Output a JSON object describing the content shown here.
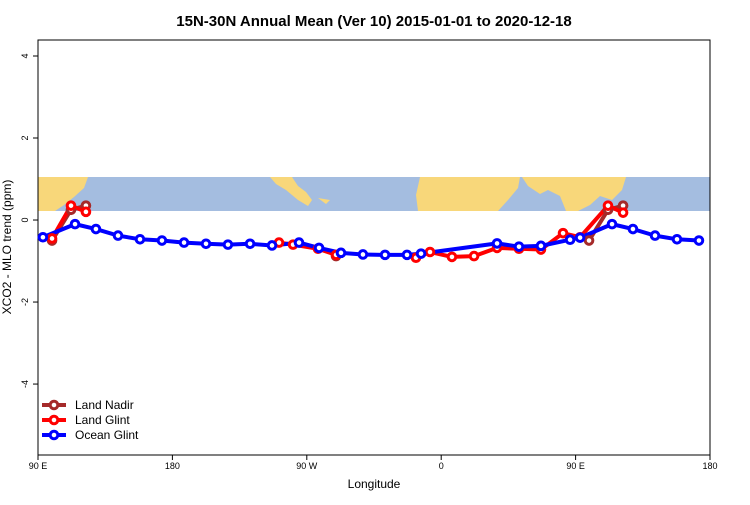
{
  "chart_data": {
    "type": "line",
    "title": "15N-30N Annual Mean (Ver 10)   2015-01-01 to 2020-12-18",
    "x_label": "Longitude",
    "y_label": "XCO2 - MLO trend (ppm)",
    "xlim": [
      90,
      540
    ],
    "ylim": [
      -5.73,
      4.39
    ],
    "xticks": [
      {
        "value": 90,
        "label": "90 E"
      },
      {
        "value": 180,
        "label": "180"
      },
      {
        "value": 270,
        "label": "90 W"
      },
      {
        "value": 360,
        "label": "0"
      },
      {
        "value": 450,
        "label": "90 E"
      },
      {
        "value": 540,
        "label": "180"
      }
    ],
    "yticks": [
      -4,
      -2,
      0,
      2,
      4
    ],
    "legend": "bottom-left",
    "series": [
      {
        "name": "Land Nadir",
        "color": "#a52a2a",
        "x": [
          99.4,
          112.1,
          122.1,
          null,
          289.6,
          null,
          459.0,
          471.7,
          481.8
        ],
        "values": [
          -0.5,
          0.25,
          0.35,
          null,
          -0.88,
          null,
          -0.5,
          0.25,
          0.35
        ]
      },
      {
        "name": "Land Glint",
        "color": "#ff0000",
        "x": [
          99.4,
          112.1,
          122.1,
          null,
          251.4,
          260.8,
          277.5,
          289.6,
          null,
          343.1,
          352.5,
          367.2,
          382.0,
          397.4,
          412.1,
          426.8,
          441.6,
          453.0,
          471.7,
          481.8
        ],
        "values": [
          -0.45,
          0.35,
          0.2,
          null,
          -0.55,
          -0.6,
          -0.7,
          -0.85,
          null,
          -0.92,
          -0.78,
          -0.9,
          -0.88,
          -0.68,
          -0.7,
          -0.72,
          -0.32,
          -0.42,
          0.35,
          0.18
        ]
      },
      {
        "name": "Ocean Glint",
        "color": "#0000ff",
        "x": [
          93.3,
          114.8,
          128.8,
          143.6,
          158.3,
          173.0,
          187.8,
          202.5,
          217.2,
          232.0,
          246.7,
          264.8,
          278.2,
          292.9,
          307.6,
          322.4,
          337.1,
          346.5,
          397.4,
          412.1,
          426.8,
          446.3,
          453.0,
          474.4,
          488.4,
          503.2,
          517.9,
          532.6
        ],
        "values": [
          -0.42,
          -0.1,
          -0.22,
          -0.38,
          -0.47,
          -0.5,
          -0.55,
          -0.58,
          -0.6,
          -0.58,
          -0.62,
          -0.55,
          -0.68,
          -0.8,
          -0.84,
          -0.85,
          -0.85,
          -0.82,
          -0.57,
          -0.65,
          -0.63,
          -0.48,
          -0.43,
          -0.1,
          -0.22,
          -0.38,
          -0.47,
          -0.5
        ]
      }
    ]
  }
}
